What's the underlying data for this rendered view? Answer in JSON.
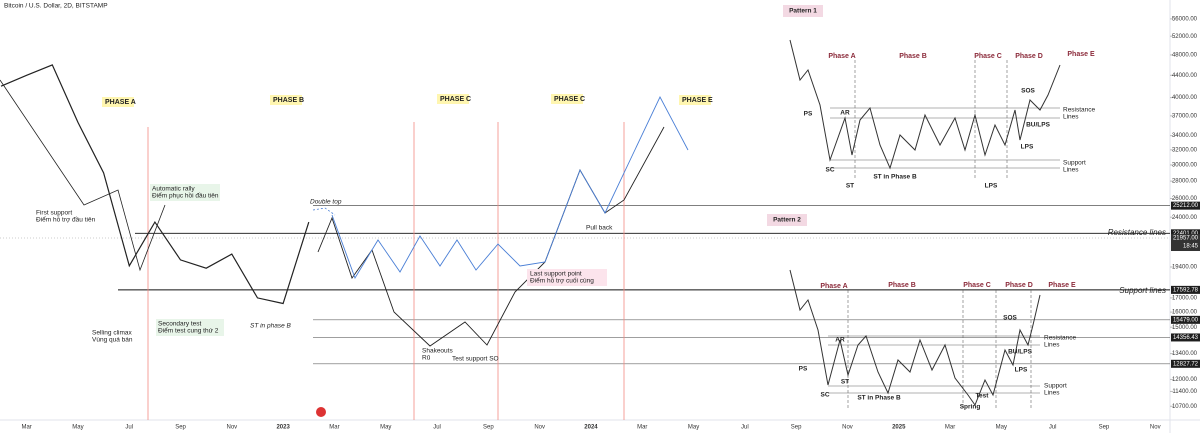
{
  "chart_data": {
    "type": "line",
    "title": "Bitcoin / U.S. Dollar, 2D, BITSTAMP",
    "categories": [
      null,
      "Mar",
      null,
      "May",
      null,
      "Jul",
      null,
      "Sep",
      null,
      "Nov",
      null,
      "2023",
      null,
      "Mar",
      null,
      "May",
      null,
      "Jul",
      null,
      "Sep",
      null,
      "Nov",
      null,
      "2024",
      null,
      "Mar",
      null,
      "May",
      null,
      "Jul",
      null,
      "Sep",
      null,
      "Nov",
      null,
      "2025",
      null,
      "Mar",
      null,
      "May",
      null,
      "Jul",
      null,
      "Sep",
      null,
      "Nov"
    ],
    "values": [
      42000,
      44000,
      46000,
      36000,
      29000,
      19500,
      23500,
      20000,
      19300,
      20500,
      17000,
      16600,
      23500,
      null,
      null,
      null,
      null,
      null,
      null,
      null,
      null,
      null,
      null,
      null,
      null,
      null,
      null,
      null,
      null,
      null,
      null,
      null,
      null,
      null,
      null,
      null,
      null,
      null,
      null,
      null,
      null,
      null,
      null,
      null,
      null,
      null
    ],
    "color": "#222222",
    "log_scale": true,
    "grid": false,
    "ylim": [
      10090,
      60700
    ],
    "yticks": [
      {
        "value": 56000,
        "label": "56000.00"
      },
      {
        "value": 52000,
        "label": "52000.00"
      },
      {
        "value": 48000,
        "label": "48000.00"
      },
      {
        "value": 44000,
        "label": "44000.00"
      },
      {
        "value": 40000,
        "label": "40000.00"
      },
      {
        "value": 37000,
        "label": "37000.00"
      },
      {
        "value": 34000,
        "label": "34000.00"
      },
      {
        "value": 32000,
        "label": "32000.00"
      },
      {
        "value": 30000,
        "label": "30000.00"
      },
      {
        "value": 28000,
        "label": "28000.00"
      },
      {
        "value": 26000,
        "label": "26000.00"
      },
      {
        "value": 24000,
        "label": "24000.00"
      },
      {
        "value": 19400,
        "label": "19400.00"
      },
      {
        "value": 17000,
        "label": "17000.00"
      },
      {
        "value": 16000,
        "label": "16000.00"
      },
      {
        "value": 15000,
        "label": "15000.00"
      },
      {
        "value": 13400,
        "label": "13400.00"
      },
      {
        "value": 12000,
        "label": "12000.00"
      },
      {
        "value": 11400,
        "label": "11400.00"
      },
      {
        "value": 10700,
        "label": "10700.00"
      }
    ],
    "price_tags": [
      {
        "value": 25212,
        "label": "25212.00"
      },
      {
        "value": 22401,
        "label": "22401.00"
      },
      {
        "value": 21957,
        "label": "21957.00"
      },
      {
        "value": 17592.78,
        "label": "17592.78"
      },
      {
        "value": 15479,
        "label": "15479.00"
      },
      {
        "value": 14356.43,
        "label": "14356.43"
      },
      {
        "value": 12827.72,
        "label": "12827.72"
      }
    ],
    "countdown": "18:45",
    "annotations": [
      "PHASE A",
      "PHASE B",
      "PHASE C",
      "PHASE C",
      "PHASE E",
      "First support",
      "Điểm hỗ trợ đầu tiên",
      "Automatic rally",
      "Điểm phục hồi đầu tiên",
      "Selling climax",
      "Vùng quá bán",
      "Secondary test",
      "Điểm test cung thứ 2",
      "ST in phase B",
      "Double top",
      "Pull back",
      "Last support point",
      "Điểm hỗ trợ cuối cùng",
      "Shakeouts",
      "Rũ",
      "Test support SO",
      "Resistance lines",
      "Support lines"
    ],
    "patterns": [
      {
        "title": "Pattern 1",
        "labels": [
          "Phase A",
          "Phase B",
          "Phase C",
          "Phase D",
          "Phase E",
          "PS",
          "AR",
          "SC",
          "ST",
          "ST in Phase B",
          "LPS",
          "LPS",
          "SOS",
          "BU/LPS",
          "Resistance",
          "Lines",
          "Support",
          "Lines"
        ]
      },
      {
        "title": "Pattern 2",
        "labels": [
          "Phase A",
          "Phase B",
          "Phase C",
          "Phase D",
          "Phase E",
          "PS",
          "AR",
          "SC",
          "ST",
          "ST in Phase B",
          "Spring",
          "Test",
          "LPS",
          "SOS",
          "BU/LPS",
          "Resistance",
          "Lines",
          "Support",
          "Lines"
        ]
      }
    ]
  }
}
